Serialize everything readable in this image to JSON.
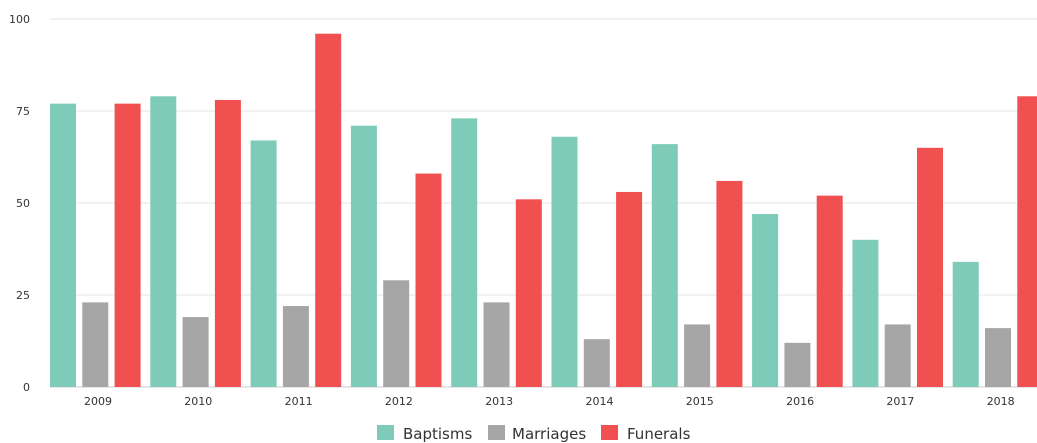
{
  "chart_data": {
    "type": "bar",
    "categories": [
      "2009",
      "2010",
      "2011",
      "2012",
      "2013",
      "2014",
      "2015",
      "2016",
      "2017",
      "2018"
    ],
    "series": [
      {
        "name": "Baptisms",
        "color": "#7ecbb9",
        "values": [
          77,
          79,
          67,
          71,
          73,
          68,
          66,
          47,
          40,
          34
        ]
      },
      {
        "name": "Marriages",
        "color": "#a6a6a6",
        "values": [
          23,
          19,
          22,
          29,
          23,
          13,
          17,
          12,
          17,
          16
        ]
      },
      {
        "name": "Funerals",
        "color": "#f05050",
        "values": [
          77,
          78,
          96,
          58,
          51,
          53,
          56,
          52,
          65,
          79
        ]
      }
    ],
    "yticks": [
      "0",
      "25",
      "50",
      "75",
      "100"
    ],
    "ylim": [
      0,
      100
    ],
    "grid": true,
    "legend": "bottom-center"
  }
}
